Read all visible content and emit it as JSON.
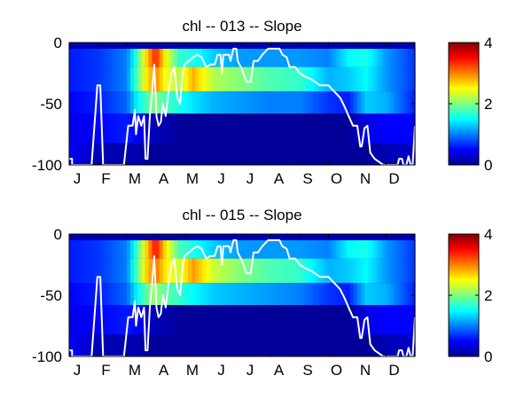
{
  "chart_data": [
    {
      "type": "heatmap",
      "title": "chl -- 013 -- Slope",
      "xlabel": "",
      "ylabel": "",
      "x_tick_labels": [
        "J",
        "F",
        "M",
        "A",
        "M",
        "J",
        "J",
        "A",
        "S",
        "O",
        "N",
        "D"
      ],
      "x_range_months": [
        0,
        12
      ],
      "ylim": [
        -100,
        0
      ],
      "y_ticks": [
        0,
        -50,
        -100
      ],
      "y_tick_labels": [
        "0",
        "-50",
        "-100"
      ],
      "colorbar": {
        "colormap": "jet",
        "range": [
          0,
          4
        ],
        "ticks": [
          0,
          2,
          4
        ],
        "tick_labels": [
          "0",
          "2",
          "4"
        ]
      },
      "depth_bands": [
        {
          "top": -5,
          "bottom": -20
        },
        {
          "top": -20,
          "bottom": -40
        },
        {
          "top": -40,
          "bottom": -58
        },
        {
          "top": -58,
          "bottom": -82
        },
        {
          "top": -82,
          "bottom": -100
        }
      ],
      "surface_value_by_month": [
        {
          "month": 0.0,
          "values": [
            0.6,
            0.6,
            0.5,
            0.4,
            0.5
          ]
        },
        {
          "month": 1.0,
          "values": [
            0.7,
            0.7,
            0.6,
            0.5,
            0.2
          ]
        },
        {
          "month": 2.0,
          "values": [
            1.0,
            1.0,
            0.9,
            0.6,
            0.2
          ]
        },
        {
          "month": 2.3,
          "values": [
            1.6,
            1.7,
            1.4,
            0.5,
            0.2
          ]
        },
        {
          "month": 2.7,
          "values": [
            2.7,
            2.6,
            1.8,
            0.3,
            0.1
          ]
        },
        {
          "month": 3.0,
          "values": [
            3.4,
            3.0,
            2.0,
            0.2,
            0.1
          ]
        },
        {
          "month": 3.3,
          "values": [
            2.6,
            2.5,
            1.8,
            0.2,
            0.1
          ]
        },
        {
          "month": 3.8,
          "values": [
            1.7,
            2.2,
            1.6,
            0.1,
            0.1
          ]
        },
        {
          "month": 4.3,
          "values": [
            1.6,
            2.8,
            1.4,
            0.1,
            0.1
          ]
        },
        {
          "month": 5.0,
          "values": [
            1.3,
            2.2,
            1.2,
            0.1,
            0.1
          ]
        },
        {
          "month": 6.0,
          "values": [
            1.1,
            2.0,
            1.1,
            0.1,
            0.1
          ]
        },
        {
          "month": 7.0,
          "values": [
            1.1,
            1.8,
            1.0,
            0.1,
            0.1
          ]
        },
        {
          "month": 8.0,
          "values": [
            1.1,
            1.7,
            1.0,
            0.1,
            0.1
          ]
        },
        {
          "month": 9.0,
          "values": [
            1.0,
            1.2,
            0.7,
            0.1,
            0.1
          ]
        },
        {
          "month": 9.7,
          "values": [
            1.5,
            1.3,
            0.6,
            0.1,
            0.1
          ]
        },
        {
          "month": 10.3,
          "values": [
            1.6,
            1.5,
            1.3,
            0.4,
            0.1
          ]
        },
        {
          "month": 11.0,
          "values": [
            1.1,
            1.1,
            1.2,
            0.5,
            0.2
          ]
        },
        {
          "month": 12.0,
          "values": [
            0.7,
            0.7,
            0.6,
            0.5,
            0.3
          ]
        }
      ],
      "mixed_layer_depth_line": {
        "color": "#ffffff",
        "points": [
          [
            0.0,
            -95
          ],
          [
            0.1,
            -95
          ],
          [
            0.1,
            -100
          ],
          [
            0.78,
            -100
          ],
          [
            0.9,
            -60
          ],
          [
            0.98,
            -35
          ],
          [
            1.08,
            -35
          ],
          [
            1.18,
            -100
          ],
          [
            1.9,
            -100
          ],
          [
            2.05,
            -68
          ],
          [
            2.2,
            -68
          ],
          [
            2.28,
            -55
          ],
          [
            2.32,
            -75
          ],
          [
            2.4,
            -60
          ],
          [
            2.5,
            -68
          ],
          [
            2.6,
            -60
          ],
          [
            2.65,
            -95
          ],
          [
            2.72,
            -95
          ],
          [
            2.8,
            -60
          ],
          [
            2.88,
            -40
          ],
          [
            2.95,
            -18
          ],
          [
            3.03,
            -60
          ],
          [
            3.1,
            -68
          ],
          [
            3.18,
            -65
          ],
          [
            3.25,
            -50
          ],
          [
            3.35,
            -60
          ],
          [
            3.45,
            -40
          ],
          [
            3.55,
            -25
          ],
          [
            3.65,
            -20
          ],
          [
            3.75,
            -45
          ],
          [
            3.85,
            -50
          ],
          [
            3.92,
            -30
          ],
          [
            4.0,
            -18
          ],
          [
            4.15,
            -15
          ],
          [
            4.3,
            -12
          ],
          [
            4.45,
            -10
          ],
          [
            4.6,
            -12
          ],
          [
            4.75,
            -20
          ],
          [
            4.9,
            -18
          ],
          [
            5.05,
            -18
          ],
          [
            5.15,
            -10
          ],
          [
            5.25,
            -10
          ],
          [
            5.3,
            -25
          ],
          [
            5.35,
            -10
          ],
          [
            5.55,
            -10
          ],
          [
            5.6,
            -15
          ],
          [
            5.7,
            -5
          ],
          [
            5.8,
            -5
          ],
          [
            5.85,
            -15
          ],
          [
            6.0,
            -22
          ],
          [
            6.15,
            -32
          ],
          [
            6.3,
            -32
          ],
          [
            6.4,
            -15
          ],
          [
            6.55,
            -15
          ],
          [
            6.7,
            -10
          ],
          [
            6.9,
            -5
          ],
          [
            7.1,
            -5
          ],
          [
            7.3,
            -5
          ],
          [
            7.4,
            -10
          ],
          [
            7.55,
            -12
          ],
          [
            7.65,
            -20
          ],
          [
            7.85,
            -20
          ],
          [
            8.0,
            -25
          ],
          [
            8.2,
            -28
          ],
          [
            8.4,
            -30
          ],
          [
            8.7,
            -35
          ],
          [
            9.0,
            -35
          ],
          [
            9.2,
            -40
          ],
          [
            9.4,
            -45
          ],
          [
            9.55,
            -52
          ],
          [
            9.7,
            -60
          ],
          [
            9.85,
            -68
          ],
          [
            10.0,
            -68
          ],
          [
            10.1,
            -85
          ],
          [
            10.15,
            -85
          ],
          [
            10.25,
            -70
          ],
          [
            10.35,
            -68
          ],
          [
            10.45,
            -90
          ],
          [
            10.6,
            -95
          ],
          [
            10.9,
            -100
          ],
          [
            11.0,
            -100
          ],
          [
            11.4,
            -100
          ],
          [
            11.45,
            -95
          ],
          [
            11.55,
            -95
          ],
          [
            11.6,
            -100
          ],
          [
            11.7,
            -100
          ],
          [
            11.78,
            -93
          ],
          [
            11.85,
            -100
          ],
          [
            11.92,
            -100
          ],
          [
            12.0,
            -68
          ]
        ]
      }
    },
    {
      "type": "heatmap",
      "title": "chl -- 015 -- Slope",
      "xlabel": "",
      "ylabel": "",
      "x_tick_labels": [
        "J",
        "F",
        "M",
        "A",
        "M",
        "J",
        "J",
        "A",
        "S",
        "O",
        "N",
        "D"
      ],
      "x_range_months": [
        0,
        12
      ],
      "ylim": [
        -100,
        0
      ],
      "y_ticks": [
        0,
        -50,
        -100
      ],
      "y_tick_labels": [
        "0",
        "-50",
        "-100"
      ],
      "colorbar": {
        "colormap": "jet",
        "range": [
          0,
          4
        ],
        "ticks": [
          0,
          2,
          4
        ],
        "tick_labels": [
          "0",
          "2",
          "4"
        ]
      },
      "depth_bands": [
        {
          "top": -5,
          "bottom": -20
        },
        {
          "top": -20,
          "bottom": -40
        },
        {
          "top": -40,
          "bottom": -58
        },
        {
          "top": -58,
          "bottom": -82
        },
        {
          "top": -82,
          "bottom": -100
        }
      ],
      "surface_value_by_month": [
        {
          "month": 0.0,
          "values": [
            0.6,
            0.6,
            0.5,
            0.4,
            0.5
          ]
        },
        {
          "month": 1.0,
          "values": [
            0.7,
            0.7,
            0.6,
            0.5,
            0.2
          ]
        },
        {
          "month": 2.0,
          "values": [
            1.0,
            1.0,
            0.9,
            0.6,
            0.2
          ]
        },
        {
          "month": 2.3,
          "values": [
            1.6,
            1.7,
            1.4,
            0.5,
            0.2
          ]
        },
        {
          "month": 2.7,
          "values": [
            2.7,
            2.7,
            1.9,
            0.3,
            0.1
          ]
        },
        {
          "month": 3.0,
          "values": [
            3.5,
            3.1,
            2.1,
            0.2,
            0.1
          ]
        },
        {
          "month": 3.3,
          "values": [
            2.7,
            2.6,
            1.9,
            0.2,
            0.1
          ]
        },
        {
          "month": 3.8,
          "values": [
            1.8,
            2.3,
            1.7,
            0.1,
            0.1
          ]
        },
        {
          "month": 4.3,
          "values": [
            1.6,
            2.9,
            1.5,
            0.1,
            0.1
          ]
        },
        {
          "month": 5.0,
          "values": [
            1.3,
            2.3,
            1.3,
            0.1,
            0.1
          ]
        },
        {
          "month": 6.0,
          "values": [
            1.1,
            2.0,
            1.2,
            0.1,
            0.1
          ]
        },
        {
          "month": 7.0,
          "values": [
            1.1,
            1.8,
            1.1,
            0.1,
            0.1
          ]
        },
        {
          "month": 8.0,
          "values": [
            1.1,
            1.7,
            1.0,
            0.1,
            0.1
          ]
        },
        {
          "month": 9.0,
          "values": [
            1.0,
            1.2,
            0.7,
            0.1,
            0.1
          ]
        },
        {
          "month": 9.7,
          "values": [
            1.5,
            1.3,
            0.6,
            0.1,
            0.1
          ]
        },
        {
          "month": 10.3,
          "values": [
            1.6,
            1.5,
            1.3,
            0.4,
            0.1
          ]
        },
        {
          "month": 11.0,
          "values": [
            1.1,
            1.1,
            1.2,
            0.5,
            0.2
          ]
        },
        {
          "month": 12.0,
          "values": [
            0.7,
            0.7,
            0.6,
            0.5,
            0.3
          ]
        }
      ],
      "mixed_layer_depth_line": {
        "color": "#ffffff",
        "points": [
          [
            0.0,
            -95
          ],
          [
            0.1,
            -95
          ],
          [
            0.1,
            -100
          ],
          [
            0.78,
            -100
          ],
          [
            0.9,
            -60
          ],
          [
            0.98,
            -35
          ],
          [
            1.08,
            -35
          ],
          [
            1.18,
            -100
          ],
          [
            1.9,
            -100
          ],
          [
            2.05,
            -68
          ],
          [
            2.2,
            -68
          ],
          [
            2.28,
            -55
          ],
          [
            2.32,
            -75
          ],
          [
            2.4,
            -60
          ],
          [
            2.5,
            -68
          ],
          [
            2.6,
            -60
          ],
          [
            2.65,
            -95
          ],
          [
            2.72,
            -95
          ],
          [
            2.8,
            -60
          ],
          [
            2.88,
            -40
          ],
          [
            2.95,
            -18
          ],
          [
            3.03,
            -60
          ],
          [
            3.1,
            -68
          ],
          [
            3.18,
            -65
          ],
          [
            3.25,
            -50
          ],
          [
            3.35,
            -60
          ],
          [
            3.45,
            -40
          ],
          [
            3.55,
            -25
          ],
          [
            3.65,
            -20
          ],
          [
            3.75,
            -45
          ],
          [
            3.85,
            -50
          ],
          [
            3.92,
            -30
          ],
          [
            4.0,
            -18
          ],
          [
            4.15,
            -15
          ],
          [
            4.3,
            -12
          ],
          [
            4.45,
            -10
          ],
          [
            4.6,
            -12
          ],
          [
            4.75,
            -20
          ],
          [
            4.9,
            -18
          ],
          [
            5.05,
            -18
          ],
          [
            5.15,
            -10
          ],
          [
            5.25,
            -10
          ],
          [
            5.3,
            -25
          ],
          [
            5.35,
            -10
          ],
          [
            5.55,
            -10
          ],
          [
            5.6,
            -15
          ],
          [
            5.7,
            -5
          ],
          [
            5.8,
            -5
          ],
          [
            5.85,
            -15
          ],
          [
            6.0,
            -22
          ],
          [
            6.15,
            -32
          ],
          [
            6.3,
            -32
          ],
          [
            6.4,
            -15
          ],
          [
            6.55,
            -15
          ],
          [
            6.7,
            -10
          ],
          [
            6.9,
            -5
          ],
          [
            7.1,
            -5
          ],
          [
            7.3,
            -5
          ],
          [
            7.4,
            -10
          ],
          [
            7.55,
            -12
          ],
          [
            7.65,
            -20
          ],
          [
            7.85,
            -20
          ],
          [
            8.0,
            -25
          ],
          [
            8.2,
            -28
          ],
          [
            8.4,
            -30
          ],
          [
            8.7,
            -35
          ],
          [
            9.0,
            -35
          ],
          [
            9.2,
            -40
          ],
          [
            9.4,
            -45
          ],
          [
            9.55,
            -52
          ],
          [
            9.7,
            -60
          ],
          [
            9.85,
            -68
          ],
          [
            10.0,
            -68
          ],
          [
            10.1,
            -85
          ],
          [
            10.15,
            -85
          ],
          [
            10.25,
            -70
          ],
          [
            10.35,
            -68
          ],
          [
            10.45,
            -90
          ],
          [
            10.6,
            -95
          ],
          [
            10.9,
            -100
          ],
          [
            11.0,
            -100
          ],
          [
            11.4,
            -100
          ],
          [
            11.45,
            -95
          ],
          [
            11.55,
            -95
          ],
          [
            11.6,
            -100
          ],
          [
            11.7,
            -100
          ],
          [
            11.78,
            -93
          ],
          [
            11.85,
            -100
          ],
          [
            11.92,
            -100
          ],
          [
            12.0,
            -68
          ]
        ]
      }
    }
  ]
}
